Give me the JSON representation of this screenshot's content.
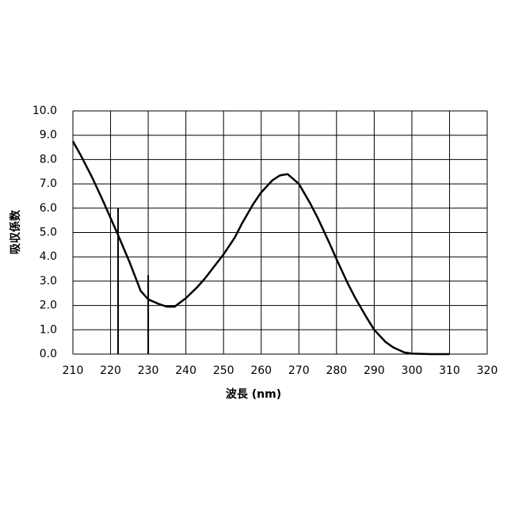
{
  "chart_data": {
    "type": "line",
    "xlabel": "波長 (nm)",
    "ylabel": "吸収係数",
    "x": [
      210,
      212,
      215,
      218,
      220,
      222,
      225,
      228,
      230,
      233,
      235,
      237,
      240,
      243,
      245,
      248,
      250,
      253,
      255,
      258,
      260,
      263,
      265,
      267,
      270,
      273,
      275,
      278,
      280,
      283,
      285,
      288,
      290,
      293,
      295,
      298,
      300,
      305,
      310
    ],
    "series": [
      {
        "color": "#000000",
        "values": [
          8.75,
          8.2,
          7.3,
          6.3,
          5.6,
          4.9,
          3.8,
          2.6,
          2.25,
          2.05,
          1.95,
          1.95,
          2.3,
          2.75,
          3.1,
          3.7,
          4.1,
          4.8,
          5.4,
          6.2,
          6.65,
          7.15,
          7.35,
          7.4,
          7.0,
          6.2,
          5.6,
          4.6,
          3.9,
          2.9,
          2.3,
          1.5,
          1.0,
          0.5,
          0.28,
          0.07,
          0.02,
          0,
          0
        ]
      }
    ],
    "vlines": [
      {
        "x": 222,
        "y": 6.0
      },
      {
        "x": 230,
        "y": 3.25
      }
    ],
    "xlim": [
      210,
      320
    ],
    "xticks": [
      210,
      220,
      230,
      240,
      250,
      260,
      270,
      280,
      290,
      300,
      310,
      320
    ],
    "ylim": [
      0,
      10
    ],
    "yticks": [
      {
        "value": 0,
        "label": "0.0"
      },
      {
        "value": 1,
        "label": "1.0"
      },
      {
        "value": 2,
        "label": "2.0"
      },
      {
        "value": 3,
        "label": "3.0"
      },
      {
        "value": 4,
        "label": "4.0"
      },
      {
        "value": 5,
        "label": "5.0"
      },
      {
        "value": 6,
        "label": "6.0"
      },
      {
        "value": 7,
        "label": "7.0"
      },
      {
        "value": 8,
        "label": "8.0"
      },
      {
        "value": 9,
        "label": "9.0"
      },
      {
        "value": 10,
        "label": "10.0"
      }
    ],
    "grid": true
  }
}
